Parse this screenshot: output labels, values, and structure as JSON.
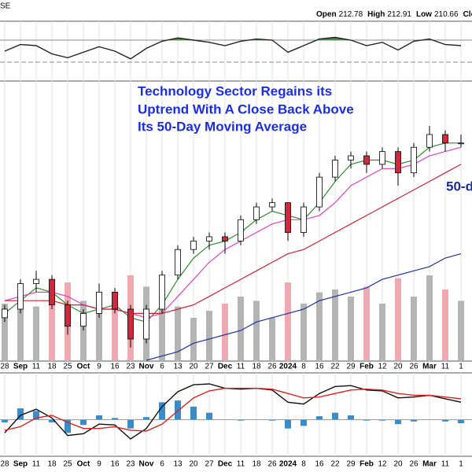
{
  "chart_data": [
    {
      "type": "line",
      "ylim": [
        0,
        100
      ],
      "levels": [
        70,
        30
      ],
      "fill_color": "#4a8a4a",
      "series": [
        {
          "color": "#222222",
          "values": [
            50,
            62,
            60,
            45,
            38,
            48,
            58,
            50,
            36,
            55,
            68,
            74,
            70,
            66,
            60,
            68,
            72,
            70,
            48,
            60,
            72,
            75,
            70,
            60,
            66,
            52,
            68,
            72,
            62,
            60
          ]
        }
      ]
    },
    {
      "type": "candlestick",
      "ticker": "SE",
      "header": [
        {
          "label": "Open",
          "value": 212.78
        },
        {
          "label": "High",
          "value": 212.91
        },
        {
          "label": "Low",
          "value": 210.66
        },
        {
          "label": "Close"
        }
      ],
      "annotations": [
        "Technology Sector Regains its",
        "Uptrend With A Close Back Above",
        "Its 50-Day Moving Average"
      ],
      "side_label": "50-d",
      "categories": [
        "28",
        "Sep",
        "11",
        "18",
        "25",
        "Oct",
        "9",
        "16",
        "23",
        "Nov",
        "6",
        "13",
        "20",
        "27",
        "Dec",
        "11",
        "18",
        "26",
        "2024",
        "8",
        "16",
        "22",
        "29",
        "Feb",
        "12",
        "20",
        "26",
        "Mar",
        "11",
        "1"
      ],
      "bold_categories": [
        "Sep",
        "Oct",
        "Nov",
        "Dec",
        "2024",
        "Feb",
        "Mar"
      ],
      "open": [
        170,
        172,
        178,
        179,
        173,
        168,
        171,
        176,
        172,
        165,
        172,
        180,
        186,
        188,
        189,
        188,
        193,
        196,
        197,
        190,
        196,
        203,
        207,
        208,
        206,
        209,
        204,
        210,
        213,
        211
      ],
      "high": [
        173,
        179,
        181,
        180,
        174,
        172,
        178,
        177,
        173,
        173,
        181,
        187,
        189,
        190,
        190,
        194,
        197,
        198,
        197,
        197,
        204,
        208,
        209,
        209,
        210,
        210,
        211,
        215,
        214,
        213
      ],
      "low": [
        169,
        171,
        176,
        172,
        166,
        167,
        170,
        171,
        163,
        164,
        171,
        179,
        185,
        186,
        185,
        187,
        192,
        195,
        188,
        189,
        195,
        202,
        205,
        204,
        205,
        201,
        203,
        209,
        209,
        210
      ],
      "close": [
        172,
        178,
        179,
        173,
        168,
        171,
        176,
        172,
        165,
        172,
        180,
        186,
        188,
        189,
        188,
        193,
        196,
        197,
        190,
        196,
        203,
        207,
        208,
        206,
        209,
        204,
        210,
        213,
        211,
        211
      ],
      "up_color": "#ffffff",
      "down_color": "#d0283c",
      "ylim": [
        160,
        225
      ],
      "series": [
        {
          "color": "#2e8b2e",
          "values": [
            171,
            174,
            177,
            176,
            173,
            171,
            172,
            173,
            170,
            169,
            173,
            179,
            184,
            187,
            188,
            190,
            193,
            195,
            194,
            193,
            197,
            202,
            206,
            207,
            207,
            206,
            207,
            210,
            211,
            211
          ]
        },
        {
          "color": "#e040c0",
          "values": [
            174,
            175,
            176,
            176,
            175,
            173,
            172,
            172,
            171,
            170,
            171,
            175,
            179,
            183,
            186,
            188,
            190,
            192,
            193,
            193,
            194,
            197,
            201,
            203,
            205,
            205,
            206,
            208,
            209,
            210
          ]
        },
        {
          "color": "#d02030",
          "values": [
            174,
            174,
            174,
            174,
            173,
            173,
            172,
            172,
            171,
            171,
            171,
            172,
            173,
            175,
            177,
            179,
            181,
            183,
            185,
            186,
            188,
            190,
            192,
            194,
            196,
            198,
            200,
            202,
            204,
            206
          ]
        },
        {
          "color": "#2030a0",
          "values": [
            null,
            null,
            null,
            null,
            null,
            null,
            null,
            null,
            null,
            160,
            161,
            162,
            164,
            165,
            166,
            167,
            169,
            170,
            171,
            172,
            174,
            175,
            176,
            177,
            179,
            180,
            181,
            182,
            184,
            185
          ]
        }
      ],
      "volume": {
        "ylim": [
          0,
          100
        ],
        "up_color": "#b4b4b4",
        "down_color": "#eeaab0",
        "values": [
          40,
          45,
          38,
          50,
          55,
          42,
          48,
          40,
          60,
          52,
          45,
          38,
          30,
          35,
          40,
          45,
          42,
          30,
          55,
          40,
          48,
          50,
          45,
          52,
          40,
          58,
          45,
          60,
          50,
          42
        ]
      }
    },
    {
      "type": "line",
      "ylim": [
        -4,
        5
      ],
      "series": [
        {
          "color": "#111111",
          "values": [
            -1.5,
            0.5,
            1.2,
            0.2,
            -1.8,
            -1.6,
            -0.5,
            -0.6,
            -2.2,
            -1.0,
            1.5,
            3.2,
            4.0,
            4.1,
            3.6,
            3.5,
            3.6,
            3.4,
            2.0,
            1.8,
            3.0,
            3.8,
            3.9,
            3.4,
            3.3,
            2.5,
            2.6,
            2.8,
            2.4,
            2.0
          ]
        },
        {
          "color": "#e02020",
          "values": [
            -1.2,
            -0.8,
            0.2,
            0.5,
            -0.3,
            -1.0,
            -1.0,
            -0.8,
            -1.2,
            -1.3,
            -0.5,
            1.0,
            2.5,
            3.3,
            3.6,
            3.6,
            3.6,
            3.5,
            3.0,
            2.5,
            2.6,
            3.0,
            3.4,
            3.5,
            3.4,
            3.0,
            2.8,
            2.8,
            2.6,
            2.4
          ]
        }
      ],
      "histogram": {
        "color": "#3a8cc8",
        "values": [
          -0.3,
          1.3,
          1.0,
          -0.3,
          -1.5,
          -0.6,
          0.5,
          0.2,
          -1.0,
          0.3,
          2.0,
          2.2,
          1.5,
          0.8,
          0.0,
          -0.1,
          0.0,
          -0.1,
          -1.0,
          -0.7,
          0.4,
          0.8,
          0.5,
          -0.1,
          -0.1,
          -0.5,
          -0.2,
          0.0,
          -0.2,
          -0.4
        ]
      }
    }
  ]
}
